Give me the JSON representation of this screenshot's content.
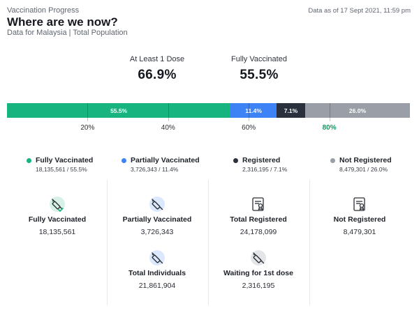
{
  "header": {
    "kicker": "Vaccination Progress",
    "title": "Where are we now?",
    "subtitle": "Data for Malaysia | Total Population",
    "as_of": "Data as of 17 Sept 2021, 11:59 pm"
  },
  "stats": {
    "at_least_one": {
      "label": "At Least 1 Dose",
      "value": "66.9%"
    },
    "fully": {
      "label": "Fully Vaccinated",
      "value": "55.5%"
    }
  },
  "bar": {
    "segments": [
      {
        "key": "fully",
        "label": "55.5%",
        "percent": 55.5
      },
      {
        "key": "partial",
        "label": "11.4%",
        "percent": 11.4
      },
      {
        "key": "registered",
        "label": "7.1%",
        "percent": 7.1
      },
      {
        "key": "not_registered",
        "label": "26.0%",
        "percent": 26.0
      }
    ],
    "ticks": [
      {
        "label": "20%",
        "value": 20
      },
      {
        "label": "40%",
        "value": 40
      },
      {
        "label": "60%",
        "value": 60
      },
      {
        "label": "80%",
        "value": 80,
        "highlight": true
      }
    ]
  },
  "legend": [
    {
      "label": "Fully Vaccinated",
      "sub": "18,135,561 / 55.5%",
      "color": "#17b47f"
    },
    {
      "label": "Partially Vaccinated",
      "sub": "3,726,343 / 11.4%",
      "color": "#3d83f5"
    },
    {
      "label": "Registered",
      "sub": "2,316,195 / 7.1%",
      "color": "#2a313d"
    },
    {
      "label": "Not Registered",
      "sub": "8,479,301 / 26.0%",
      "color": "#9a9ea6"
    }
  ],
  "cards": {
    "fully": {
      "label": "Fully Vaccinated",
      "value": "18,135,561",
      "icon": "syringe-check-icon"
    },
    "partial": {
      "label": "Partially Vaccinated",
      "value": "3,726,343",
      "icon": "syringe-icon"
    },
    "total_registered": {
      "label": "Total Registered",
      "value": "24,178,099",
      "icon": "certificate-icon"
    },
    "not_registered": {
      "label": "Not Registered",
      "value": "8,479,301",
      "icon": "certificate-icon"
    },
    "total_individuals": {
      "label": "Total Individuals",
      "value": "21,861,904",
      "icon": "syringe-icon"
    },
    "waiting": {
      "label": "Waiting for 1st dose",
      "value": "2,316,195",
      "icon": "syringe-icon"
    }
  }
}
